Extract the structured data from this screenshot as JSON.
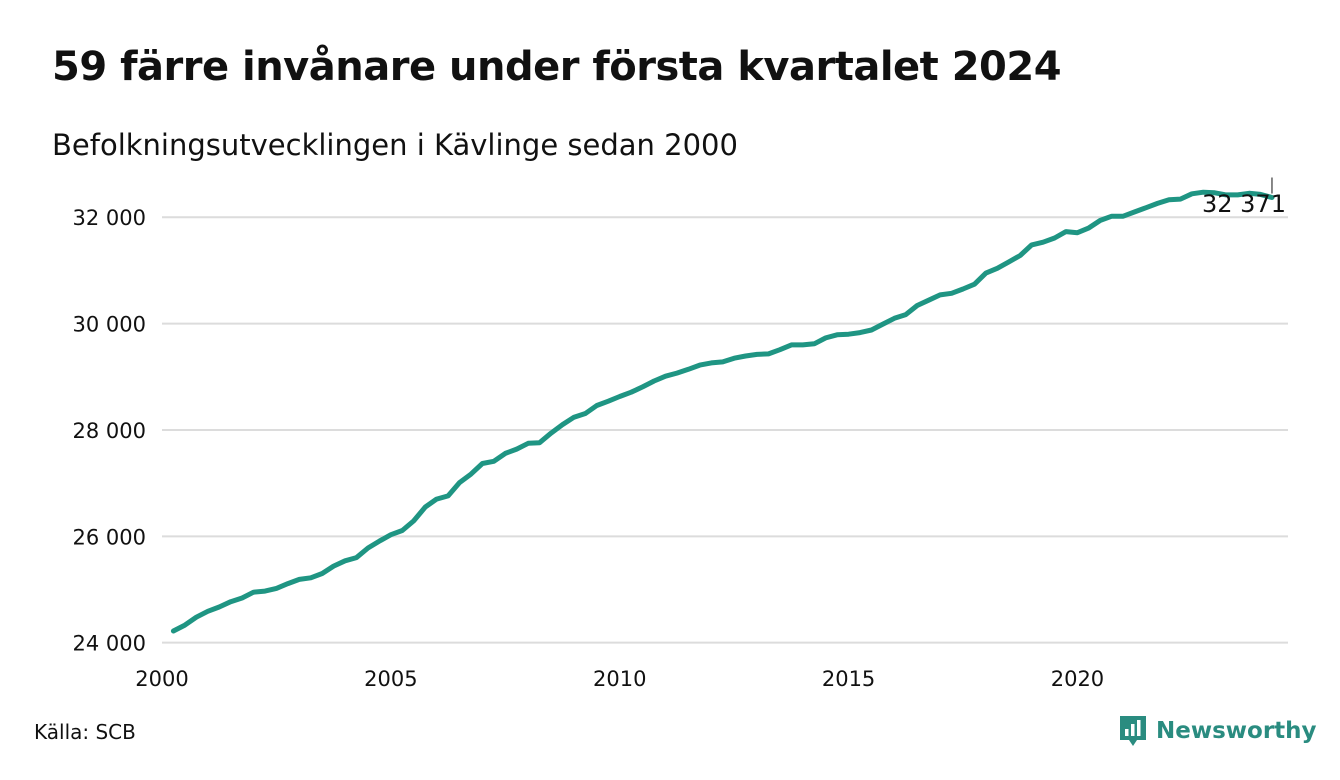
{
  "title": "59 färre invånare under första kvartalet 2024",
  "subtitle": "Befolkningsutvecklingen i Kävlinge sedan 2000",
  "source": "Källa: SCB",
  "brand": "Newsworthy",
  "chart_data": {
    "type": "line",
    "title": "59 färre invånare under första kvartalet 2024",
    "subtitle": "Befolkningsutvecklingen i Kävlinge sedan 2000",
    "xlabel": "",
    "ylabel": "",
    "xlim": [
      2000,
      2024.6
    ],
    "ylim": [
      23900,
      32700
    ],
    "grid": true,
    "legend": "none",
    "line_color": "#1f9583",
    "x_ticks": [
      2000,
      2005,
      2010,
      2015,
      2020
    ],
    "y_ticks": [
      24000,
      26000,
      28000,
      30000,
      32000
    ],
    "y_tick_labels": [
      "24 000",
      "26 000",
      "28 000",
      "30 000",
      "32 000"
    ],
    "end_label": "32 371",
    "series": [
      {
        "x": [
          2000.25,
          2000.5,
          2000.75,
          2001,
          2001.25,
          2001.5,
          2001.75,
          2002,
          2002.25,
          2002.5,
          2002.75,
          2003,
          2003.25,
          2003.5,
          2003.75,
          2004,
          2004.25,
          2004.5,
          2004.75,
          2005,
          2005.25,
          2005.5,
          2005.75,
          2006,
          2006.25,
          2006.5,
          2006.75,
          2007,
          2007.25,
          2007.5,
          2007.75,
          2008,
          2008.25,
          2008.5,
          2008.75,
          2009,
          2009.25,
          2009.5,
          2009.75,
          2010,
          2010.25,
          2010.5,
          2010.75,
          2011,
          2011.25,
          2011.5,
          2011.75,
          2012,
          2012.25,
          2012.5,
          2012.75,
          2013,
          2013.25,
          2013.5,
          2013.75,
          2014,
          2014.25,
          2014.5,
          2014.75,
          2015,
          2015.25,
          2015.5,
          2015.75,
          2016,
          2016.25,
          2016.5,
          2016.75,
          2017,
          2017.25,
          2017.5,
          2017.75,
          2018,
          2018.25,
          2018.5,
          2018.75,
          2019,
          2019.25,
          2019.5,
          2019.75,
          2020,
          2020.25,
          2020.5,
          2020.75,
          2021,
          2021.25,
          2021.5,
          2021.75,
          2022,
          2022.25,
          2022.5,
          2022.75,
          2023,
          2023.25,
          2023.5,
          2023.75,
          2024,
          2024.25
        ],
        "values": [
          24220,
          24330,
          24480,
          24590,
          24670,
          24770,
          24840,
          24950,
          24970,
          25020,
          25110,
          25190,
          25220,
          25300,
          25440,
          25540,
          25600,
          25780,
          25910,
          26030,
          26110,
          26290,
          26550,
          26700,
          26760,
          27010,
          27170,
          27370,
          27410,
          27560,
          27640,
          27750,
          27760,
          27940,
          28100,
          28240,
          28310,
          28460,
          28540,
          28630,
          28710,
          28810,
          28920,
          29010,
          29070,
          29140,
          29220,
          29260,
          29280,
          29350,
          29390,
          29420,
          29430,
          29510,
          29600,
          29600,
          29620,
          29730,
          29790,
          29800,
          29830,
          29880,
          29990,
          30100,
          30170,
          30340,
          30440,
          30540,
          30570,
          30650,
          30740,
          30950,
          31040,
          31160,
          31280,
          31480,
          31530,
          31610,
          31730,
          31710,
          31800,
          31940,
          32020,
          32020,
          32100,
          32180,
          32260,
          32330,
          32340,
          32440,
          32470,
          32460,
          32420,
          32420,
          32450,
          32430,
          32371
        ]
      }
    ]
  }
}
